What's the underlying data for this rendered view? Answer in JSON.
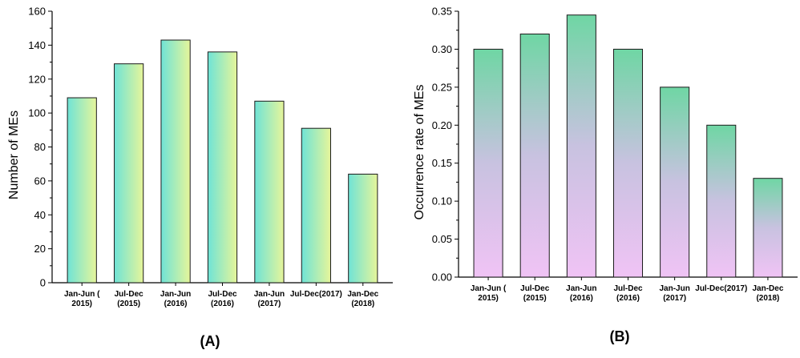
{
  "chart_data": [
    {
      "type": "bar",
      "panel_label": "(A)",
      "categories": [
        [
          "Jan-Jun (",
          "2015)"
        ],
        [
          "Jul-Dec",
          "(2015)"
        ],
        [
          "Jan-Jun",
          "(2016)"
        ],
        [
          "Jul-Dec",
          "(2016)"
        ],
        [
          "Jan-Jun",
          "(2017)"
        ],
        [
          "Jul-Dec(2017)"
        ],
        [
          "Jan-Dec",
          "(2018)"
        ]
      ],
      "values": [
        109,
        129,
        143,
        136,
        107,
        91,
        64
      ],
      "ylabel": "Number of MEs",
      "xlabel": "",
      "ylim": [
        0,
        160
      ],
      "yticks": [
        0,
        20,
        40,
        60,
        80,
        100,
        120,
        140,
        160
      ],
      "ytick_labels": [
        "0",
        "20",
        "40",
        "60",
        "80",
        "100",
        "120",
        "140",
        "160"
      ],
      "grid": false,
      "bar_gradient": {
        "direction": "horizontal",
        "colors": [
          "#6fe3d6",
          "#e6f59a"
        ]
      }
    },
    {
      "type": "bar",
      "panel_label": "(B)",
      "categories": [
        [
          "Jan-Jun (",
          "2015)"
        ],
        [
          "Jul-Dec",
          "(2015)"
        ],
        [
          "Jan-Jun",
          "(2016)"
        ],
        [
          "Jul-Dec",
          "(2016)"
        ],
        [
          "Jan-Jun",
          "(2017)"
        ],
        [
          "Jul-Dec(2017)"
        ],
        [
          "Jan-Dec",
          "(2018)"
        ]
      ],
      "values": [
        0.3,
        0.32,
        0.345,
        0.3,
        0.25,
        0.2,
        0.13
      ],
      "ylabel": "Occurrence rate of MEs",
      "xlabel": "",
      "ylim": [
        0,
        0.35
      ],
      "yticks": [
        0,
        0.05,
        0.1,
        0.15,
        0.2,
        0.25,
        0.3,
        0.35
      ],
      "ytick_labels": [
        "0.00",
        "0.05",
        "0.10",
        "0.15",
        "0.20",
        "0.25",
        "0.30",
        "0.35"
      ],
      "grid": false,
      "bar_gradient": {
        "direction": "vertical",
        "colors": [
          "#6fd6a4",
          "#c8c2e0",
          "#f0c3f5"
        ]
      }
    }
  ]
}
